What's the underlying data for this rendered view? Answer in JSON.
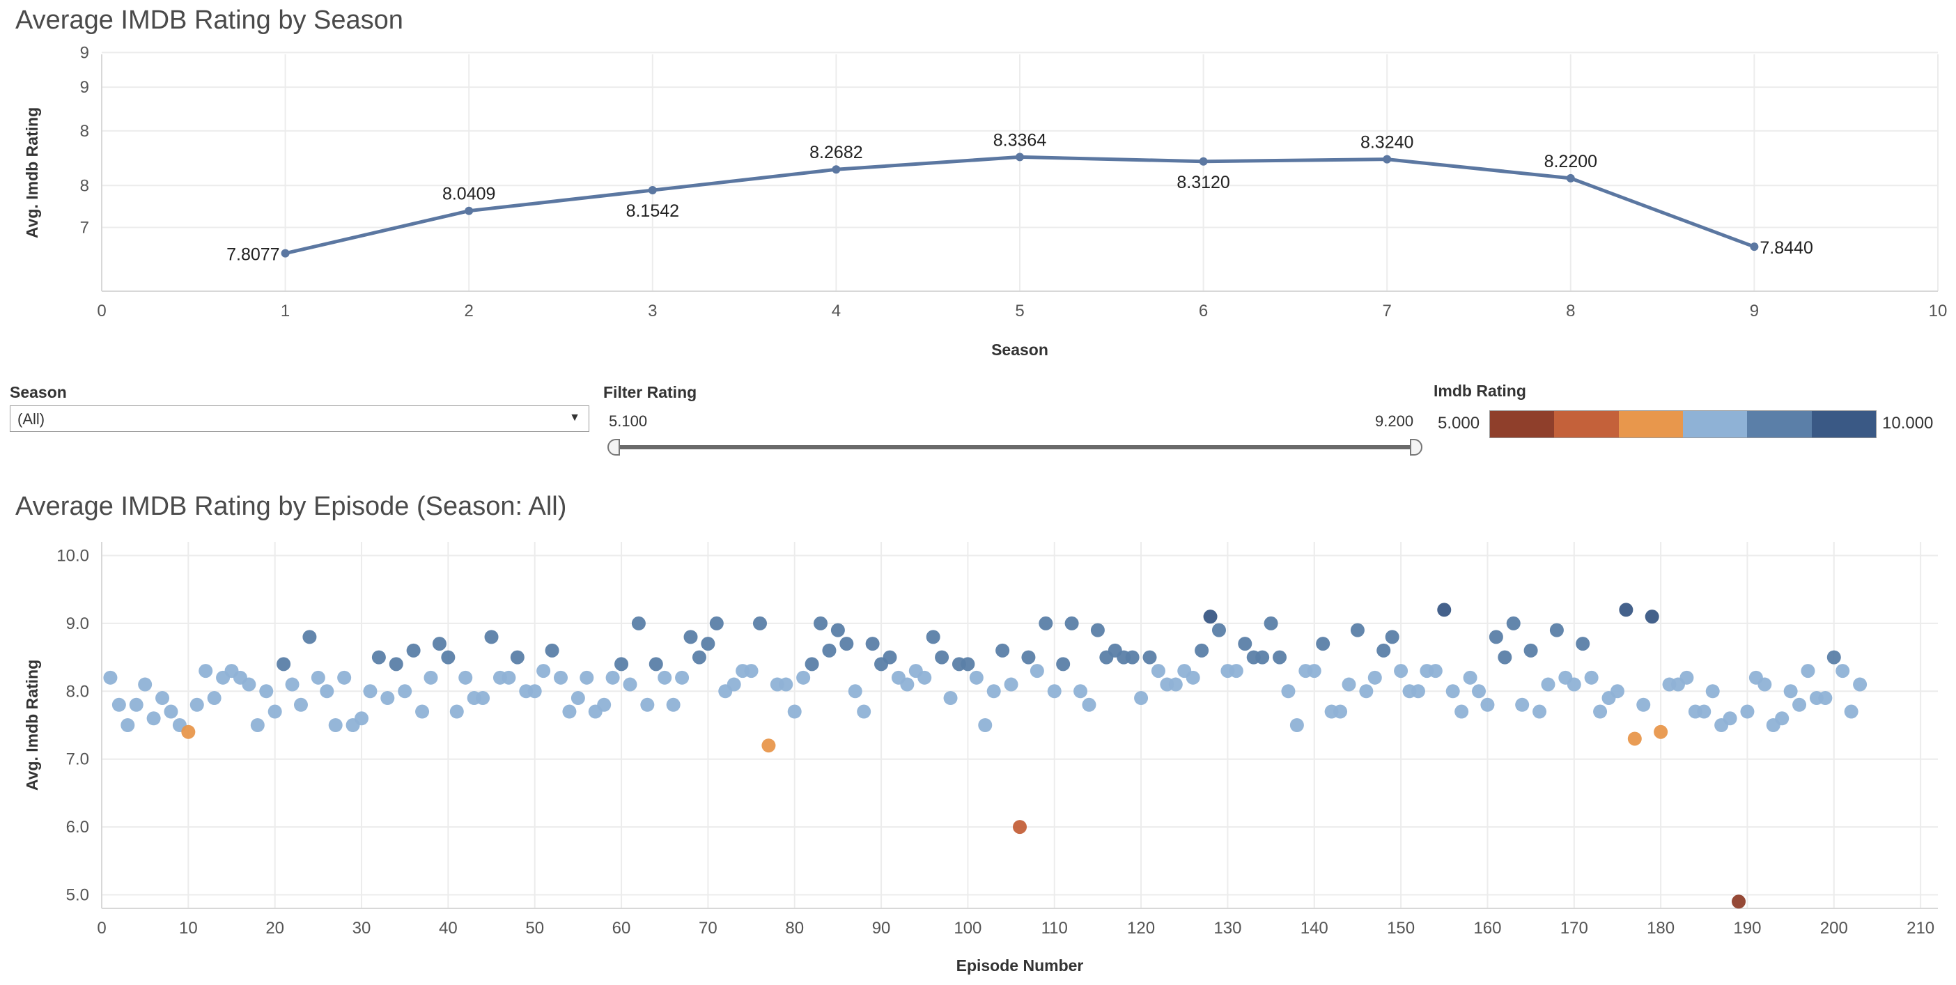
{
  "top_chart": {
    "title": "Average IMDB Rating by Season",
    "xlabel": "Season",
    "ylabel": "Avg. Imdb Rating",
    "x_ticks": [
      "0",
      "1",
      "2",
      "3",
      "4",
      "5",
      "6",
      "7",
      "8",
      "9",
      "10"
    ],
    "y_ticks": [
      "9",
      "9",
      "8",
      "8",
      "7"
    ]
  },
  "bottom_chart": {
    "title": "Average IMDB Rating by Episode (Season: All)",
    "xlabel": "Episode Number",
    "ylabel": "Avg. Imdb Rating",
    "x_ticks": [
      "0",
      "10",
      "20",
      "30",
      "40",
      "50",
      "60",
      "70",
      "80",
      "90",
      "100",
      "110",
      "120",
      "130",
      "140",
      "150",
      "160",
      "170",
      "180",
      "190",
      "200",
      "210"
    ],
    "y_ticks": [
      "10.0",
      "9.0",
      "8.0",
      "7.0",
      "6.0",
      "5.0"
    ]
  },
  "controls": {
    "season_label": "Season",
    "season_value": "(All)",
    "filter_label": "Filter Rating",
    "filter_min": "5.100",
    "filter_max": "9.200",
    "legend_label": "Imdb Rating",
    "legend_min": "5.000",
    "legend_max": "10.000",
    "legend_colors": [
      "#8f3f2b",
      "#c4613a",
      "#e8974c",
      "#8fb2d6",
      "#5b7fa8",
      "#3a5985"
    ]
  },
  "chart_data": [
    {
      "type": "line",
      "title": "Average IMDB Rating by Season",
      "xlabel": "Season",
      "ylabel": "Avg. Imdb Rating",
      "xlim": [
        0,
        10
      ],
      "ylim": [
        7.6,
        8.9
      ],
      "color": "#5b77a1",
      "x": [
        1,
        2,
        3,
        4,
        5,
        6,
        7,
        8,
        9
      ],
      "y": [
        7.8077,
        8.0409,
        8.1542,
        8.2682,
        8.3364,
        8.312,
        8.324,
        8.22,
        7.844
      ],
      "labels": [
        "7.8077",
        "8.0409",
        "8.1542",
        "8.2682",
        "8.3364",
        "8.3120",
        "8.3240",
        "8.2200",
        "7.8440"
      ],
      "label_pos": [
        "left",
        "above",
        "below",
        "above",
        "above",
        "below",
        "above",
        "above",
        "right"
      ]
    },
    {
      "type": "scatter",
      "title": "Average IMDB Rating by Episode (Season: All)",
      "xlabel": "Episode Number",
      "ylabel": "Avg. Imdb Rating",
      "xlim": [
        0,
        212
      ],
      "ylim": [
        4.8,
        10.2
      ],
      "x": [
        1,
        2,
        3,
        4,
        5,
        6,
        7,
        8,
        9,
        10,
        11,
        12,
        13,
        14,
        15,
        16,
        17,
        18,
        19,
        20,
        21,
        22,
        23,
        24,
        25,
        26,
        27,
        28,
        29,
        30,
        31,
        32,
        33,
        34,
        35,
        36,
        37,
        38,
        39,
        40,
        41,
        42,
        43,
        44,
        45,
        46,
        47,
        48,
        49,
        50,
        51,
        52,
        53,
        54,
        55,
        56,
        57,
        58,
        59,
        60,
        61,
        62,
        63,
        64,
        65,
        66,
        67,
        68,
        69,
        70,
        71,
        72,
        73,
        74,
        75,
        76,
        77,
        78,
        79,
        80,
        81,
        82,
        83,
        84,
        85,
        86,
        87,
        88,
        89,
        90,
        91,
        92,
        93,
        94,
        95,
        96,
        97,
        98,
        99,
        100,
        101,
        102,
        103,
        104,
        105,
        106,
        107,
        108,
        109,
        110,
        111,
        112,
        113,
        114,
        115,
        116,
        117,
        118,
        119,
        120,
        121,
        122,
        123,
        124,
        125,
        126,
        127,
        128,
        129,
        130,
        131,
        132,
        133,
        134,
        135,
        136,
        137,
        138,
        139,
        140,
        141,
        142,
        143,
        144,
        145,
        146,
        147,
        148,
        149,
        150,
        151,
        152,
        153,
        154,
        155,
        156,
        157,
        158,
        159,
        160,
        161,
        162,
        163,
        164,
        165,
        166,
        167,
        168,
        169,
        170,
        171,
        172,
        173,
        174,
        175,
        176,
        177,
        178,
        179,
        180,
        181,
        182,
        183,
        184,
        185,
        186,
        187,
        188,
        189,
        190,
        191,
        192,
        193,
        194,
        195,
        196,
        197,
        198,
        199,
        200,
        201,
        202,
        203
      ],
      "y": [
        8.2,
        7.8,
        7.5,
        7.8,
        8.1,
        7.6,
        7.9,
        7.7,
        7.5,
        7.4,
        7.8,
        8.3,
        7.9,
        8.2,
        8.3,
        8.2,
        8.1,
        7.5,
        8.0,
        7.7,
        8.4,
        8.1,
        7.8,
        8.8,
        8.2,
        8.0,
        7.5,
        8.2,
        7.5,
        7.6,
        8.0,
        8.5,
        7.9,
        8.4,
        8.0,
        8.6,
        7.7,
        8.2,
        8.7,
        8.5,
        7.7,
        8.2,
        7.9,
        7.9,
        8.8,
        8.2,
        8.2,
        8.5,
        8.0,
        8.0,
        8.3,
        8.6,
        8.2,
        7.7,
        7.9,
        8.2,
        7.7,
        7.8,
        8.2,
        8.4,
        8.1,
        9.0,
        7.8,
        8.4,
        8.2,
        7.8,
        8.2,
        8.8,
        8.5,
        8.7,
        9.0,
        8.0,
        8.1,
        8.3,
        8.3,
        9.0,
        7.2,
        8.1,
        8.1,
        7.7,
        8.2,
        8.4,
        9.0,
        8.6,
        8.9,
        8.7,
        8.0,
        7.7,
        8.7,
        8.4,
        8.5,
        8.2,
        8.1,
        8.3,
        8.2,
        8.8,
        8.5,
        7.9,
        8.4,
        8.4,
        8.2,
        7.5,
        8.0,
        8.6,
        8.1,
        6.0,
        8.5,
        8.3,
        9.0,
        8.0,
        8.4,
        9.0,
        8.0,
        7.8,
        8.9,
        8.5,
        8.6,
        8.5,
        8.5,
        7.9,
        8.5,
        8.3,
        8.1,
        8.1,
        8.3,
        8.2,
        8.6,
        9.1,
        8.9,
        8.3,
        8.3,
        8.7,
        8.5,
        8.5,
        9.0,
        8.5,
        8.0,
        7.5,
        8.3,
        8.3,
        8.7,
        7.7,
        7.7,
        8.1,
        8.9,
        8.0,
        8.2,
        8.6,
        8.8,
        8.3,
        8.0,
        8.0,
        8.3,
        8.3,
        9.2,
        8.0,
        7.7,
        8.2,
        8.0,
        7.8,
        8.8,
        8.5,
        9.0,
        7.8,
        8.6,
        7.7,
        8.1,
        8.9,
        8.2,
        8.1,
        8.7,
        8.2,
        7.7,
        7.9,
        8.0,
        9.2,
        7.3,
        7.8,
        9.1,
        7.4,
        8.1,
        8.1,
        8.2,
        7.7,
        7.7,
        8.0,
        7.5,
        7.6,
        4.9,
        7.7,
        8.2,
        8.1,
        7.5,
        7.6,
        8.0,
        7.8,
        8.3,
        7.9,
        7.9,
        8.5,
        8.3,
        7.7,
        8.1
      ],
      "color_scale": {
        "min": 5.0,
        "max": 10.0
      }
    }
  ]
}
